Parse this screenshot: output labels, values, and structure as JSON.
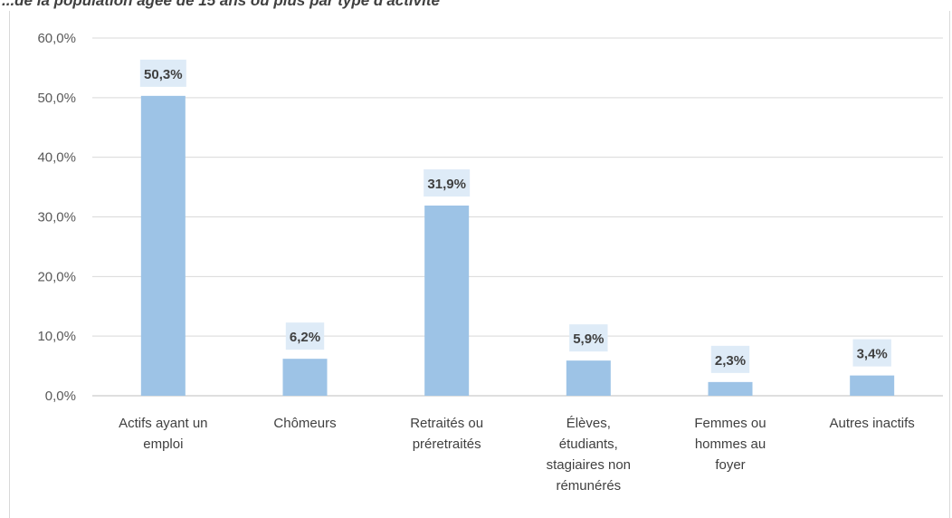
{
  "title_fragment": "...de la population âgée de 15 ans ou plus par type d'activité",
  "colors": {
    "bar": "#9dc3e6",
    "label_bg": "#deebf7",
    "grid": "#d9d9d9",
    "axis": "#bfbfbf"
  },
  "chart_data": {
    "type": "bar",
    "categories": [
      [
        "Actifs ayant un",
        "emploi"
      ],
      [
        "Chômeurs"
      ],
      [
        "Retraités ou",
        "préretraités"
      ],
      [
        "Élèves,",
        "étudiants,",
        "stagiaires non",
        "rémunérés"
      ],
      [
        "Femmes ou",
        "hommes au",
        "foyer"
      ],
      [
        "Autres inactifs"
      ]
    ],
    "values": [
      50.3,
      6.2,
      31.9,
      5.9,
      2.3,
      3.4
    ],
    "value_labels": [
      "50,3%",
      "6,2%",
      "31,9%",
      "5,9%",
      "2,3%",
      "3,4%"
    ],
    "ylim": [
      0,
      60
    ],
    "yticks": [
      0,
      10,
      20,
      30,
      40,
      50,
      60
    ],
    "ytick_labels": [
      "0,0%",
      "10,0%",
      "20,0%",
      "30,0%",
      "40,0%",
      "50,0%",
      "60,0%"
    ],
    "grid": true
  }
}
